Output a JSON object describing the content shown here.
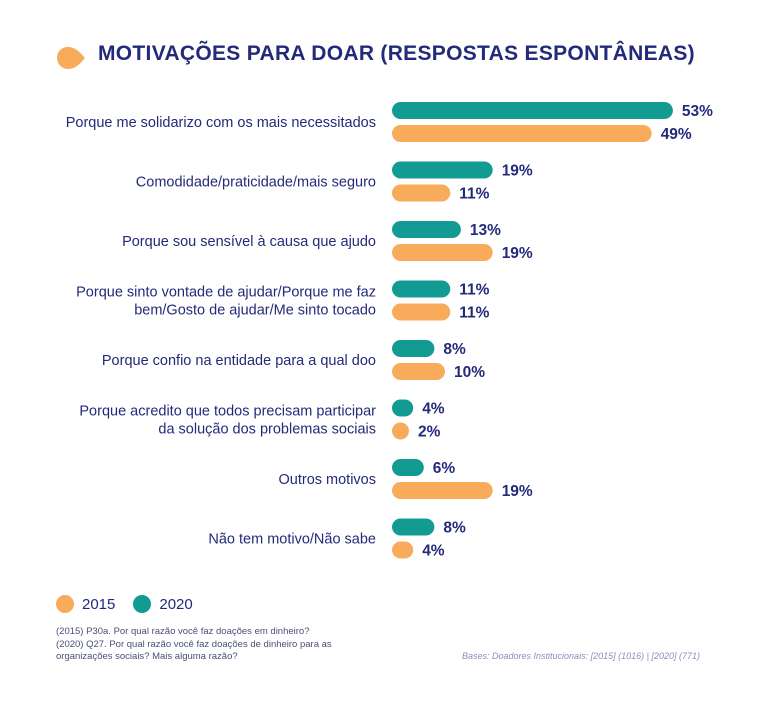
{
  "title": "MOTIVAÇÕES PARA DOAR (RESPOSTAS ESPONTÂNEAS)",
  "colors": {
    "s2020": "#129b93",
    "s2015": "#f8ab5b",
    "text": "#232a7a",
    "title_icon": "#f8ab5b"
  },
  "chart_data": {
    "type": "bar",
    "orientation": "horizontal",
    "categories": [
      [
        "Porque me solidarizo com os mais necessitados"
      ],
      [
        "Comodidade/praticidade/mais seguro"
      ],
      [
        "Porque sou sensível à causa que ajudo"
      ],
      [
        "Porque sinto vontade de ajudar/Porque me faz",
        "bem/Gosto de ajudar/Me sinto tocado"
      ],
      [
        "Porque confio na entidade para a qual doo"
      ],
      [
        "Porque acredito que todos precisam participar",
        "da solução dos problemas sociais"
      ],
      [
        "Outros motivos"
      ],
      [
        "Não tem motivo/Não sabe"
      ]
    ],
    "series": [
      {
        "name": "2020",
        "values": [
          53,
          19,
          13,
          11,
          8,
          4,
          6,
          8
        ],
        "labels": [
          "53%",
          "19%",
          "13%",
          "11%",
          "8%",
          "4%",
          "6%",
          "8%"
        ]
      },
      {
        "name": "2015",
        "values": [
          49,
          11,
          19,
          11,
          10,
          2,
          19,
          4
        ],
        "labels": [
          "49%",
          "11%",
          "19%",
          "11%",
          "10%",
          "2%",
          "19%",
          "4%"
        ]
      }
    ],
    "unit": "%",
    "legend_placement": "bottom-left",
    "grid": false
  },
  "legend": [
    {
      "label": "2015",
      "color": "#f8ab5b"
    },
    {
      "label": "2020",
      "color": "#129b93"
    }
  ],
  "note": [
    "(2015) P30a. Por qual razão você faz doações em dinheiro?",
    "(2020) Q27. Por qual razão você faz doações de dinheiro para as",
    "organizações sociais? Mais alguma razão?"
  ],
  "bases": "Bases: Doadores Institucionais: [2015] (1016) | [2020]  (771)"
}
